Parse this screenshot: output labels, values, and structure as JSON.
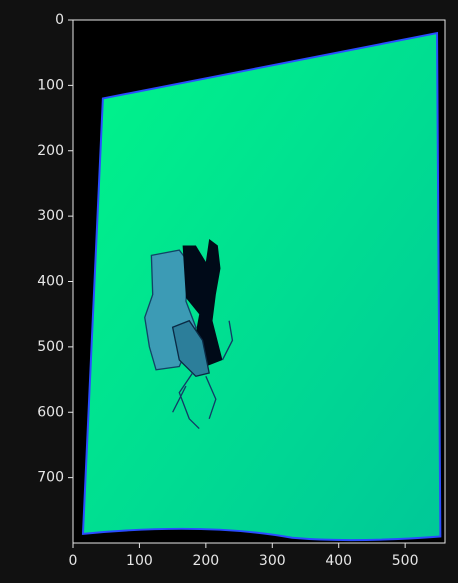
{
  "chart_data": {
    "type": "image",
    "xlim": [
      0,
      560
    ],
    "ylim": [
      800,
      0
    ],
    "xticks": [
      0,
      100,
      200,
      300,
      400,
      500
    ],
    "yticks": [
      0,
      100,
      200,
      300,
      400,
      500,
      600,
      700
    ]
  }
}
